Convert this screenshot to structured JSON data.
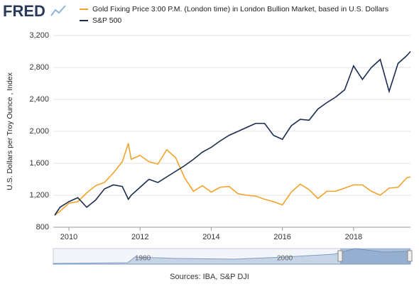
{
  "brand": "FRED",
  "chart_data": {
    "type": "line",
    "y_label": "U.S. Dollars per Troy Ounce , Index",
    "x": [
      2009.6,
      2009.75,
      2010,
      2010.25,
      2010.5,
      2010.75,
      2011,
      2011.25,
      2011.5,
      2011.67,
      2011.75,
      2012,
      2012.25,
      2012.5,
      2012.75,
      2013,
      2013.25,
      2013.5,
      2013.75,
      2014,
      2014.25,
      2014.5,
      2014.75,
      2015,
      2015.25,
      2015.5,
      2015.75,
      2016,
      2016.25,
      2016.5,
      2016.75,
      2017,
      2017.25,
      2017.5,
      2017.75,
      2018,
      2018.25,
      2018.5,
      2018.75,
      2019,
      2019.25,
      2019.5,
      2019.6
    ],
    "series": [
      {
        "name": "Gold Fixing Price 3:00 P.M. (London time) in London Bullion Market, based in U.S. Dollars",
        "color": "#f2a32a",
        "values": [
          950,
          1000,
          1100,
          1120,
          1230,
          1320,
          1360,
          1480,
          1620,
          1850,
          1650,
          1700,
          1620,
          1590,
          1770,
          1670,
          1420,
          1250,
          1320,
          1240,
          1300,
          1310,
          1220,
          1200,
          1190,
          1150,
          1120,
          1080,
          1240,
          1340,
          1270,
          1160,
          1250,
          1250,
          1290,
          1330,
          1330,
          1250,
          1200,
          1290,
          1300,
          1420,
          1430
        ]
      },
      {
        "name": "S&P 500",
        "color": "#1b2c4e",
        "values": [
          950,
          1050,
          1120,
          1170,
          1050,
          1140,
          1280,
          1330,
          1310,
          1150,
          1200,
          1300,
          1400,
          1360,
          1430,
          1500,
          1570,
          1650,
          1740,
          1800,
          1880,
          1950,
          2000,
          2050,
          2100,
          2100,
          1950,
          1900,
          2070,
          2150,
          2140,
          2280,
          2360,
          2430,
          2520,
          2820,
          2650,
          2800,
          2900,
          2500,
          2850,
          2950,
          3000
        ]
      }
    ],
    "xlim": [
      2009.56,
      2019.6
    ],
    "xticks": [
      2010,
      2012,
      2014,
      2016,
      2018
    ],
    "ylim": [
      800,
      3200
    ],
    "yticks": [
      800,
      {
        "value": 1200,
        "label": "1,200"
      },
      {
        "value": 1600,
        "label": "1,600"
      },
      {
        "value": 2000,
        "label": "2,000"
      },
      {
        "value": 2400,
        "label": "2,400"
      },
      {
        "value": 2800,
        "label": "2,800"
      },
      {
        "value": 3200,
        "label": "3,200"
      }
    ],
    "grid": true,
    "navigator_labels": [
      "1980",
      "2000"
    ],
    "source": "Sources: IBA, S&P DJI"
  }
}
